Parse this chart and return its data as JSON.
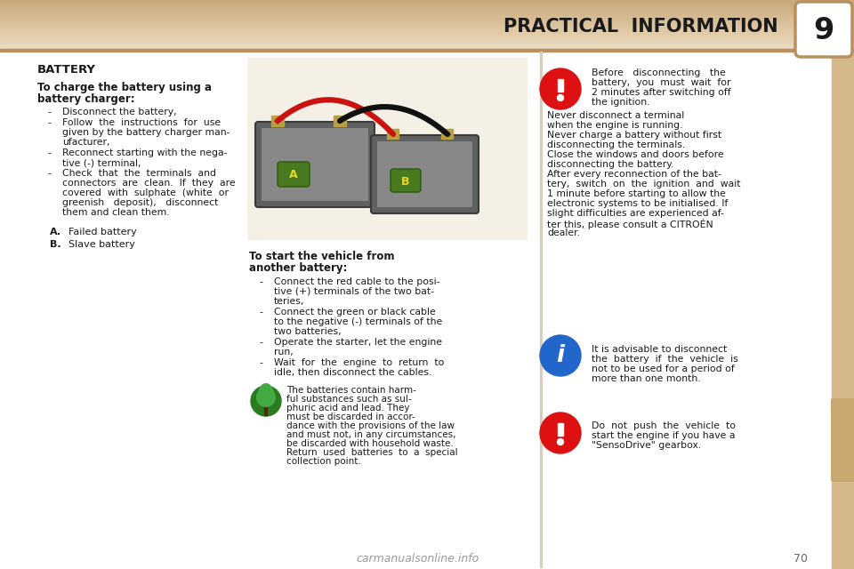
{
  "page_bg": "#ffffff",
  "header_gradient_top": "#c8a87a",
  "header_gradient_bottom": "#e8d5b0",
  "header_text": "PRACTICAL  INFORMATION",
  "footer_text": "carmanualsonline.info",
  "footer_page": "70",
  "battery_title": "BATTERY",
  "charge_title_line1": "To charge the battery using a",
  "charge_title_line2": "battery charger:",
  "charge_bullets": [
    "Disconnect the battery,",
    "Follow  the  instructions  for  use\ngiven by the battery charger man-\nufacturer,",
    "Reconnect starting with the nega-\ntive (-) terminal,",
    "Check  that  the  terminals  and\nconnectors  are  clean.  If  they  are\ncovered  with  sulphate  (white  or\ngreenish   deposit),   disconnect\nthem and clean them."
  ],
  "ab_labels": [
    "A.  Failed battery",
    "B.  Slave battery"
  ],
  "start_title_line1": "To start the vehicle from",
  "start_title_line2": "another battery:",
  "start_bullets": [
    "Connect the red cable to the posi-\ntive (+) terminals of the two bat-\nteries,",
    "Connect the green or black cable\nto the negative (-) terminals of the\ntwo batteries,",
    "Operate the starter, let the engine\nrun,",
    "Wait  for  the  engine  to  return  to\nidle, then disconnect the cables."
  ],
  "green_notice_lines": [
    "The batteries contain harm-",
    "ful substances such as sul-",
    "phuric acid and lead. They",
    "must be discarded in accor-",
    "dance with the provisions of the law",
    "and must not, in any circumstances,",
    "be discarded with household waste.",
    "Return  used  batteries  to  a  special",
    "collection point."
  ],
  "red_notice_1_icon_lines": [
    "Before   disconnecting   the",
    "battery,  you  must  wait  for",
    "2 minutes after switching off",
    "the ignition."
  ],
  "red_notice_1_body_lines": [
    "Never disconnect a terminal",
    "when the engine is running.",
    "Never charge a battery without first",
    "disconnecting the terminals.",
    "Close the windows and doors before",
    "disconnecting the battery.",
    "After every reconnection of the bat-",
    "tery,  switch  on  the  ignition  and  wait",
    "1 minute before starting to allow the",
    "electronic systems to be initialised. If",
    "slight difficulties are experienced af-",
    "ter this, please consult a CITROÉN",
    "dealer."
  ],
  "blue_notice_lines": [
    "It is advisable to disconnect",
    "the  battery  if  the  vehicle  is",
    "not to be used for a period of",
    "more than one month."
  ],
  "red_notice_2_lines": [
    "Do  not  push  the  vehicle  to",
    "start the engine if you have a",
    "\"SensoDrive\" gearbox."
  ]
}
